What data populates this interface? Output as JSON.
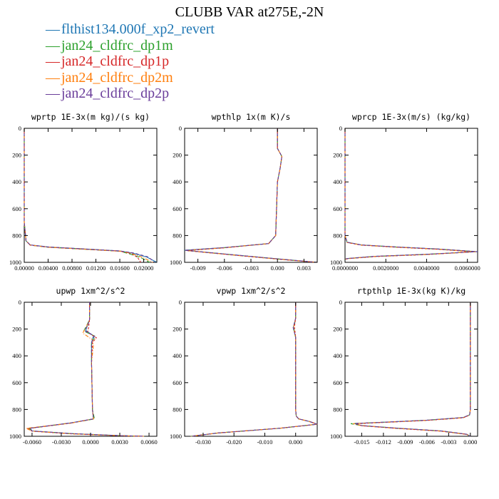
{
  "title": "CLUBB VAR at275E,-2N",
  "legend": [
    {
      "label": "flthist134.000f_xp2_revert",
      "color": "#1f77b4"
    },
    {
      "label": "jan24_cldfrc_dp1m",
      "color": "#2ca02c"
    },
    {
      "label": "jan24_cldfrc_dp1p",
      "color": "#d62728"
    },
    {
      "label": "jan24_cldfrc_dp2m",
      "color": "#ff7f0e"
    },
    {
      "label": "jan24_cldfrc_dp2p",
      "color": "#6a3d9a"
    }
  ],
  "chart_data": [
    {
      "type": "line",
      "title": "wprtp  1E-3x(m kg)/(s kg)",
      "xlim": [
        0.0,
        0.0222
      ],
      "ylim": [
        0,
        1000
      ],
      "y_inverted": true,
      "xticks": [
        0.0,
        0.004,
        0.008,
        0.012,
        0.016,
        0.02
      ],
      "xtick_labels": [
        "0.00000",
        "0.00400",
        "0.00800",
        "0.01200",
        "0.01600",
        "0.02000"
      ],
      "yticks": [
        0,
        200,
        400,
        600,
        800,
        1000
      ],
      "series": [
        {
          "x": [
            0,
            0,
            0.0003,
            0.001,
            0.004,
            0.01,
            0.016,
            0.018,
            0.0205,
            0.0222
          ],
          "y": [
            0,
            700,
            840,
            870,
            885,
            900,
            915,
            930,
            960,
            1000
          ]
        },
        {
          "x": [
            0,
            0,
            0.0003,
            0.001,
            0.004,
            0.01,
            0.016,
            0.0175,
            0.0195,
            0.021
          ],
          "y": [
            0,
            700,
            840,
            872,
            887,
            902,
            917,
            935,
            965,
            1000
          ]
        },
        {
          "x": [
            0,
            0,
            0.0003,
            0.001,
            0.004,
            0.01,
            0.016,
            0.018,
            0.019,
            0.0195
          ],
          "y": [
            0,
            700,
            840,
            872,
            887,
            902,
            917,
            935,
            965,
            1000
          ]
        },
        {
          "x": [
            0,
            0,
            0.0003,
            0.001,
            0.004,
            0.01,
            0.016,
            0.0178,
            0.0198,
            0.0215
          ],
          "y": [
            0,
            700,
            840,
            871,
            886,
            901,
            916,
            932,
            962,
            1000
          ]
        },
        {
          "x": [
            0,
            0,
            0.0003,
            0.001,
            0.004,
            0.01,
            0.016,
            0.0183,
            0.0208,
            0.0218
          ],
          "y": [
            0,
            700,
            840,
            870,
            885,
            900,
            915,
            930,
            960,
            1000
          ]
        }
      ]
    },
    {
      "type": "line",
      "title": "wpthlp  1x(m K)/s",
      "xlim": [
        -0.0105,
        0.0045
      ],
      "ylim": [
        0,
        1000
      ],
      "y_inverted": true,
      "xticks": [
        -0.009,
        -0.006,
        -0.003,
        0.0,
        0.003
      ],
      "xtick_labels": [
        "-0.009",
        "-0.006",
        "-0.003",
        "0.000",
        "0.003"
      ],
      "yticks": [
        0,
        200,
        400,
        600,
        800,
        1000
      ],
      "series": [
        {
          "x": [
            0.0,
            0.0,
            0.0005,
            0.0003,
            0.0,
            -0.0002,
            -0.001,
            -0.006,
            -0.0105,
            -0.004,
            0.001,
            0.0045
          ],
          "y": [
            0,
            150,
            210,
            300,
            400,
            800,
            860,
            890,
            910,
            950,
            980,
            1000
          ]
        },
        {
          "x": [
            0.0,
            0.0,
            0.0005,
            0.0003,
            0.0,
            -0.0002,
            -0.001,
            -0.006,
            -0.0104,
            -0.004,
            0.001,
            0.0045
          ],
          "y": [
            0,
            150,
            210,
            300,
            400,
            800,
            860,
            891,
            911,
            951,
            981,
            1000
          ]
        },
        {
          "x": [
            0.0,
            0.0,
            0.0005,
            0.0003,
            0.0,
            -0.0002,
            -0.001,
            -0.006,
            -0.0103,
            -0.004,
            0.001,
            0.0045
          ],
          "y": [
            0,
            150,
            210,
            300,
            400,
            800,
            860,
            892,
            912,
            952,
            982,
            1000
          ]
        },
        {
          "x": [
            0.0,
            0.0,
            0.0005,
            0.0003,
            0.0,
            -0.0002,
            -0.001,
            -0.006,
            -0.0104,
            -0.004,
            0.001,
            0.0045
          ],
          "y": [
            0,
            150,
            210,
            300,
            400,
            800,
            860,
            891,
            911,
            951,
            981,
            1000
          ]
        },
        {
          "x": [
            0.0,
            0.0,
            0.0005,
            0.0003,
            0.0,
            -0.0002,
            -0.001,
            -0.006,
            -0.0105,
            -0.004,
            0.001,
            0.0045
          ],
          "y": [
            0,
            150,
            210,
            300,
            400,
            800,
            860,
            890,
            910,
            950,
            980,
            1000
          ]
        }
      ]
    },
    {
      "type": "line",
      "title": "wprcp  1E-3x(m/s) (kg/kg)",
      "xlim": [
        0.0,
        0.0065
      ],
      "ylim": [
        0,
        1000
      ],
      "y_inverted": true,
      "xticks": [
        0.0,
        0.002,
        0.004,
        0.006
      ],
      "xtick_labels": [
        "0.0000000",
        "0.0020000",
        "0.0040000",
        "0.0060000"
      ],
      "yticks": [
        0,
        200,
        400,
        600,
        800,
        1000
      ],
      "series": [
        {
          "x": [
            0,
            0,
            0.0001,
            0.0008,
            0.0025,
            0.0045,
            0.0065,
            0.004,
            0.0015,
            0.0002,
            0
          ],
          "y": [
            0,
            800,
            850,
            870,
            885,
            900,
            920,
            940,
            955,
            970,
            975
          ]
        },
        {
          "x": [
            0,
            0,
            0.0001,
            0.0008,
            0.0025,
            0.0045,
            0.0064,
            0.004,
            0.0015,
            0.0002,
            0
          ],
          "y": [
            0,
            800,
            851,
            871,
            886,
            901,
            921,
            941,
            956,
            971,
            976
          ]
        },
        {
          "x": [
            0,
            0,
            0.0001,
            0.0008,
            0.0025,
            0.0045,
            0.0063,
            0.004,
            0.0015,
            0.0002,
            0
          ],
          "y": [
            0,
            800,
            852,
            872,
            887,
            902,
            922,
            942,
            957,
            972,
            977
          ]
        },
        {
          "x": [
            0,
            0,
            0.0001,
            0.0008,
            0.0025,
            0.0045,
            0.0064,
            0.004,
            0.0015,
            0.0002,
            0
          ],
          "y": [
            0,
            800,
            851,
            871,
            886,
            901,
            921,
            941,
            956,
            971,
            976
          ]
        },
        {
          "x": [
            0,
            0,
            0.0001,
            0.0008,
            0.0025,
            0.0045,
            0.0065,
            0.004,
            0.0015,
            0.0002,
            0
          ],
          "y": [
            0,
            800,
            850,
            870,
            885,
            900,
            920,
            940,
            955,
            970,
            975
          ]
        }
      ]
    },
    {
      "type": "line",
      "title": "upwp  1xm^2/s^2",
      "xlim": [
        -0.0068,
        0.0068
      ],
      "ylim": [
        0,
        1000
      ],
      "y_inverted": true,
      "xticks": [
        -0.006,
        -0.003,
        0.0,
        0.003,
        0.006
      ],
      "xtick_labels": [
        "-0.0060",
        "-0.0030",
        "0.0000",
        "0.0030",
        "0.0060"
      ],
      "yticks": [
        0,
        200,
        400,
        600,
        800,
        1000
      ],
      "series": [
        {
          "x": [
            -0.0001,
            -0.0001,
            -0.0003,
            -0.0005,
            0.0003,
            0.0001,
            0.0001,
            0.0002,
            0.0003,
            -0.002,
            -0.0062,
            -0.006,
            -0.002,
            0.003,
            0.0055
          ],
          "y": [
            0,
            130,
            170,
            210,
            250,
            300,
            450,
            800,
            870,
            900,
            940,
            960,
            980,
            995,
            1000
          ]
        },
        {
          "x": [
            -0.0001,
            -0.0001,
            -0.0004,
            -0.0007,
            0.0005,
            0.0001,
            0.0001,
            0.0002,
            0.0004,
            -0.002,
            -0.0063,
            -0.006,
            -0.002,
            0.003,
            0.0055
          ],
          "y": [
            0,
            130,
            175,
            215,
            255,
            300,
            450,
            800,
            871,
            901,
            941,
            961,
            981,
            996,
            1000
          ]
        },
        {
          "x": [
            -0.0001,
            -0.0001,
            -0.0002,
            -0.0003,
            0.0006,
            0.0002,
            0.0001,
            0.0002,
            0.0003,
            -0.002,
            -0.0064,
            -0.006,
            -0.002,
            0.003,
            0.0055
          ],
          "y": [
            0,
            130,
            185,
            225,
            265,
            300,
            450,
            800,
            870,
            902,
            942,
            962,
            982,
            996,
            1000
          ]
        },
        {
          "x": [
            -0.0001,
            -0.0001,
            -0.0004,
            -0.0008,
            0.0002,
            0.0003,
            0.0001,
            0.0002,
            0.0003,
            -0.002,
            -0.0066,
            -0.006,
            -0.002,
            0.003,
            0.0055
          ],
          "y": [
            0,
            130,
            180,
            230,
            280,
            320,
            450,
            800,
            871,
            901,
            941,
            961,
            981,
            996,
            1000
          ]
        },
        {
          "x": [
            -0.0001,
            -0.0001,
            -0.0003,
            -0.0006,
            0.0004,
            0.0001,
            0.0001,
            0.0002,
            0.0003,
            -0.002,
            -0.0062,
            -0.006,
            -0.002,
            0.003,
            0.0055
          ],
          "y": [
            0,
            130,
            172,
            212,
            252,
            300,
            450,
            800,
            870,
            900,
            940,
            960,
            980,
            995,
            1000
          ]
        }
      ]
    },
    {
      "type": "line",
      "title": "vpwp  1xm^2/s^2",
      "xlim": [
        -0.036,
        0.007
      ],
      "ylim": [
        0,
        1000
      ],
      "y_inverted": true,
      "xticks": [
        -0.03,
        -0.02,
        -0.01,
        0.0
      ],
      "xtick_labels": [
        "-0.030",
        "-0.020",
        "-0.010",
        "0.000"
      ],
      "yticks": [
        0,
        200,
        400,
        600,
        800,
        1000
      ],
      "series": [
        {
          "x": [
            0,
            0,
            -0.0008,
            0,
            0,
            0.0002,
            0.001,
            0.0045,
            0.007,
            -0.005,
            -0.025,
            -0.034
          ],
          "y": [
            0,
            120,
            190,
            260,
            800,
            850,
            870,
            890,
            910,
            940,
            975,
            1000
          ]
        },
        {
          "x": [
            0,
            0,
            -0.0006,
            0,
            0,
            0.0002,
            0.001,
            0.0045,
            0.007,
            -0.005,
            -0.025,
            -0.034
          ],
          "y": [
            0,
            120,
            195,
            265,
            800,
            850,
            870,
            890,
            910,
            940,
            975,
            1000
          ]
        },
        {
          "x": [
            0,
            0,
            -0.0004,
            0,
            0,
            0.0002,
            0.001,
            0.0045,
            0.007,
            -0.005,
            -0.025,
            -0.034
          ],
          "y": [
            0,
            120,
            185,
            255,
            800,
            850,
            870,
            890,
            910,
            940,
            975,
            1000
          ]
        },
        {
          "x": [
            0,
            0,
            -0.0007,
            0,
            0,
            0.0002,
            0.001,
            0.0045,
            0.007,
            -0.005,
            -0.025,
            -0.034
          ],
          "y": [
            0,
            120,
            190,
            260,
            800,
            850,
            870,
            890,
            910,
            940,
            975,
            1000
          ]
        },
        {
          "x": [
            0,
            0,
            -0.0008,
            0,
            0,
            0.0002,
            0.001,
            0.0045,
            0.007,
            -0.005,
            -0.025,
            -0.034
          ],
          "y": [
            0,
            120,
            190,
            260,
            800,
            850,
            870,
            890,
            910,
            940,
            975,
            1000
          ]
        }
      ]
    },
    {
      "type": "line",
      "title": "rtpthlp  1E-3x(kg K)/kg",
      "xlim": [
        -0.0173,
        0.001
      ],
      "ylim": [
        0,
        1000
      ],
      "y_inverted": true,
      "xticks": [
        -0.015,
        -0.012,
        -0.009,
        -0.006,
        -0.003,
        0.0
      ],
      "xtick_labels": [
        "-0.015",
        "-0.012",
        "-0.009",
        "-0.006",
        "-0.003",
        "0.000"
      ],
      "yticks": [
        0,
        200,
        400,
        600,
        800,
        1000
      ],
      "series": [
        {
          "x": [
            0,
            0,
            -0.0001,
            -0.001,
            -0.006,
            -0.012,
            -0.016,
            -0.015,
            -0.01,
            -0.004,
            -0.0005,
            0
          ],
          "y": [
            0,
            800,
            840,
            860,
            880,
            895,
            905,
            920,
            940,
            960,
            985,
            1000
          ]
        },
        {
          "x": [
            0,
            0,
            -0.0001,
            -0.001,
            -0.006,
            -0.012,
            -0.0165,
            -0.015,
            -0.01,
            -0.004,
            -0.0005,
            0
          ],
          "y": [
            0,
            800,
            841,
            861,
            881,
            896,
            906,
            921,
            941,
            961,
            986,
            1000
          ]
        },
        {
          "x": [
            0,
            0,
            -0.0001,
            -0.001,
            -0.006,
            -0.012,
            -0.0158,
            -0.015,
            -0.01,
            -0.004,
            -0.0005,
            0
          ],
          "y": [
            0,
            800,
            842,
            862,
            882,
            897,
            907,
            922,
            942,
            962,
            986,
            1000
          ]
        },
        {
          "x": [
            0,
            0,
            -0.0001,
            -0.001,
            -0.006,
            -0.012,
            -0.0162,
            -0.015,
            -0.01,
            -0.004,
            -0.0005,
            0
          ],
          "y": [
            0,
            800,
            841,
            861,
            881,
            896,
            906,
            921,
            941,
            961,
            986,
            1000
          ]
        },
        {
          "x": [
            0,
            0,
            -0.0001,
            -0.001,
            -0.006,
            -0.012,
            -0.016,
            -0.015,
            -0.01,
            -0.004,
            -0.0005,
            0
          ],
          "y": [
            0,
            800,
            840,
            860,
            880,
            895,
            905,
            920,
            940,
            960,
            985,
            1000
          ]
        }
      ]
    }
  ]
}
